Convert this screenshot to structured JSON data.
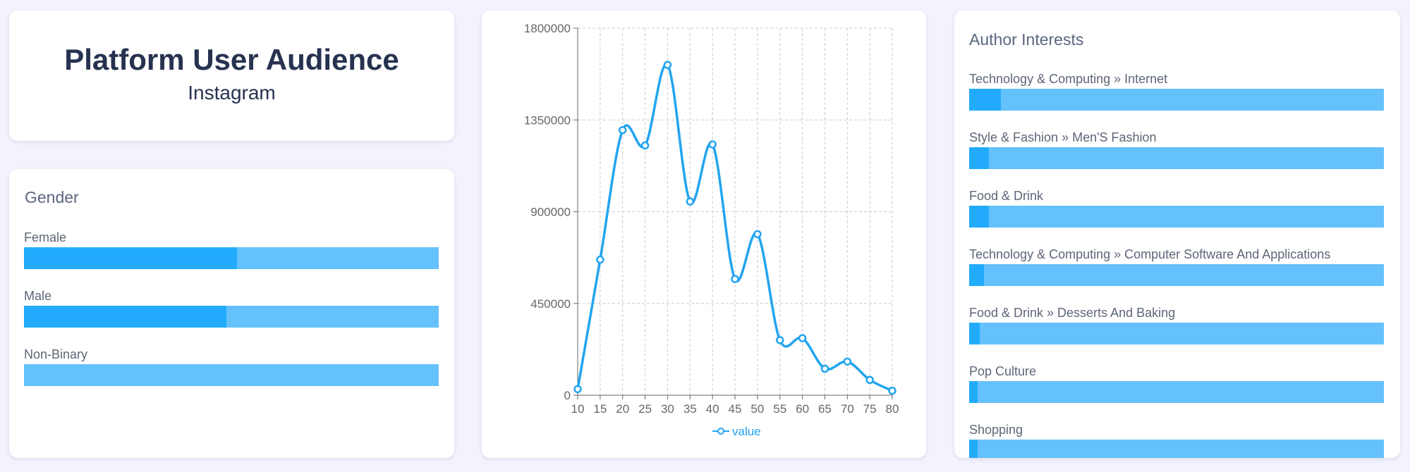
{
  "header": {
    "title": "Platform User Audience",
    "subtitle": "Instagram"
  },
  "gender": {
    "title": "Gender",
    "xlim": [
      0,
      100
    ],
    "color": "#22abfc",
    "track_color": "#64c1fb",
    "items": [
      {
        "label": "Female",
        "value": 51.4
      },
      {
        "label": "Male",
        "value": 48.8
      },
      {
        "label": "Non-Binary",
        "value": 0
      }
    ]
  },
  "chart_data": {
    "type": "line",
    "x": [
      10,
      15,
      20,
      25,
      30,
      35,
      40,
      45,
      50,
      55,
      60,
      65,
      70,
      75,
      80
    ],
    "xlim": [
      10,
      80
    ],
    "xticks": [
      10,
      15,
      20,
      25,
      30,
      35,
      40,
      45,
      50,
      55,
      60,
      65,
      70,
      75,
      80
    ],
    "ylim": [
      0,
      1800000
    ],
    "yticks": [
      0,
      450000,
      900000,
      1350000,
      1800000
    ],
    "grid": true,
    "legend": "bottom",
    "series": [
      {
        "name": "value",
        "color": "#22a5f0",
        "values": [
          30000,
          665000,
          1300000,
          1225000,
          1620000,
          950000,
          1230000,
          570000,
          790000,
          270000,
          280000,
          130000,
          165000,
          75000,
          22000
        ]
      }
    ]
  },
  "interests": {
    "title": "Author Interests",
    "xlim": [
      0,
      100
    ],
    "color": "#22abfc",
    "track_color": "#64c1fb",
    "items": [
      {
        "label": "Technology & Computing » Internet",
        "value": 7.6
      },
      {
        "label": "Style & Fashion » Men'S Fashion",
        "value": 4.8
      },
      {
        "label": "Food & Drink",
        "value": 4.7
      },
      {
        "label": "Technology & Computing » Computer Software And Applications",
        "value": 3.5
      },
      {
        "label": "Food & Drink » Desserts And Baking",
        "value": 2.6
      },
      {
        "label": "Pop Culture",
        "value": 2.0
      },
      {
        "label": "Shopping",
        "value": 2.0
      }
    ]
  }
}
